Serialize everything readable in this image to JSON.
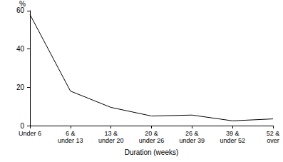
{
  "chart_data": {
    "type": "line",
    "x_label": "Duration (weeks)",
    "y_label": "%",
    "categories": [
      "Under 6",
      "6 &\nunder 13",
      "13 &\nunder 20",
      "20 &\nunder 26",
      "26 &\nunder 39",
      "39 &\nunder 52",
      "52 &\nover"
    ],
    "values": [
      58,
      18,
      9.5,
      5,
      5.5,
      2.5,
      3.5
    ],
    "color": "#000000",
    "ylim": [
      0,
      60
    ],
    "yticks": [
      0,
      20,
      40,
      60
    ],
    "grid": false
  }
}
